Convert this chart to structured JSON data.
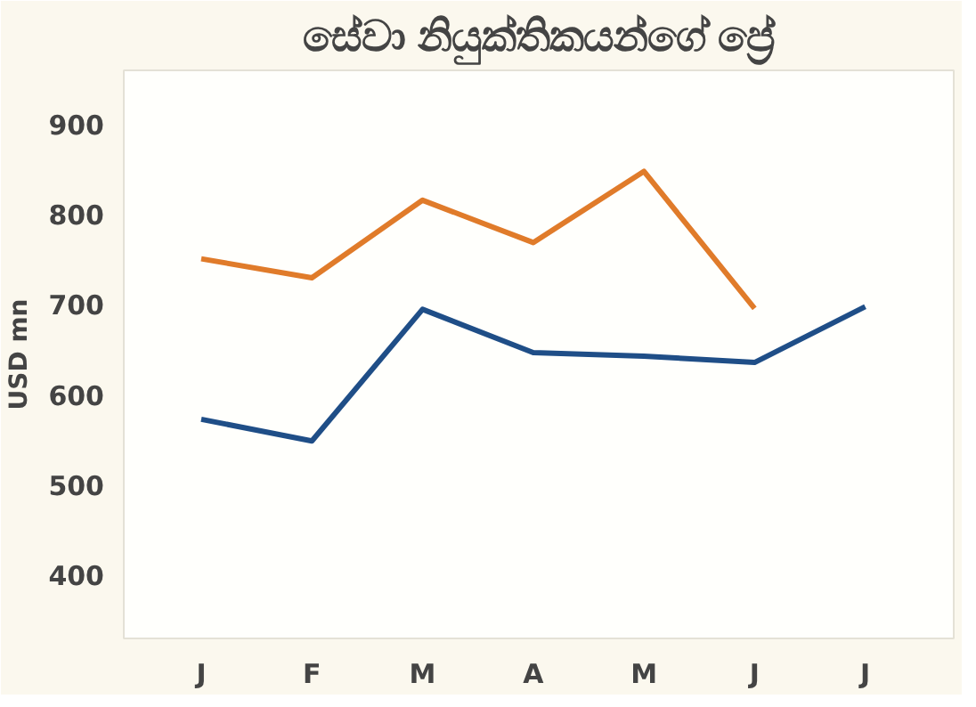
{
  "chart_data": {
    "type": "line",
    "title": "සේවා නියුක්තිකයන්ගේ ප්‍රේ",
    "ylabel": "USD mn",
    "categories": [
      "J",
      "F",
      "M",
      "A",
      "M",
      "J",
      "J"
    ],
    "series": [
      {
        "color": "#e07b2a",
        "values": [
          751,
          730,
          816,
          769,
          848,
          696,
          null
        ]
      },
      {
        "color": "#1f4e87",
        "values": [
          573,
          549,
          695,
          647,
          643,
          636,
          698
        ]
      }
    ],
    "ylim": [
      330,
      960
    ],
    "yticks": [
      400,
      500,
      600,
      700,
      800,
      900
    ],
    "grid": false,
    "line_style": "solid",
    "marker": "none"
  }
}
